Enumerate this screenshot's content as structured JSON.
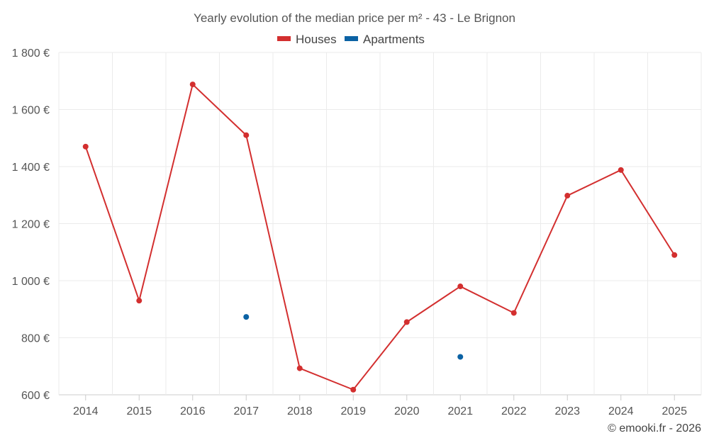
{
  "chart_data": {
    "type": "line",
    "title": "Yearly evolution of the median price per m² - 43 - Le Brignon",
    "categories": [
      "2014",
      "2015",
      "2016",
      "2017",
      "2018",
      "2019",
      "2020",
      "2021",
      "2022",
      "2023",
      "2024",
      "2025"
    ],
    "series": [
      {
        "name": "Houses",
        "color": "#d32f2f",
        "values": [
          1470,
          930,
          1688,
          1510,
          693,
          618,
          855,
          980,
          887,
          1298,
          1388,
          1090
        ],
        "connect_line": true
      },
      {
        "name": "Apartments",
        "color": "#0b62a4",
        "values": [
          null,
          null,
          null,
          873,
          null,
          null,
          null,
          733,
          null,
          null,
          null,
          null
        ],
        "connect_line": false
      }
    ],
    "y_ticks": [
      600,
      800,
      1000,
      1200,
      1400,
      1600,
      1800
    ],
    "y_tick_labels": [
      "600 €",
      "800 €",
      "1 000 €",
      "1 200 €",
      "1 400 €",
      "1 600 €",
      "1 800 €"
    ],
    "ylim": [
      600,
      1800
    ],
    "xlabel": "",
    "ylabel": "",
    "grid": true,
    "legend_position": "top-center",
    "credit": "© emooki.fr - 2026"
  }
}
